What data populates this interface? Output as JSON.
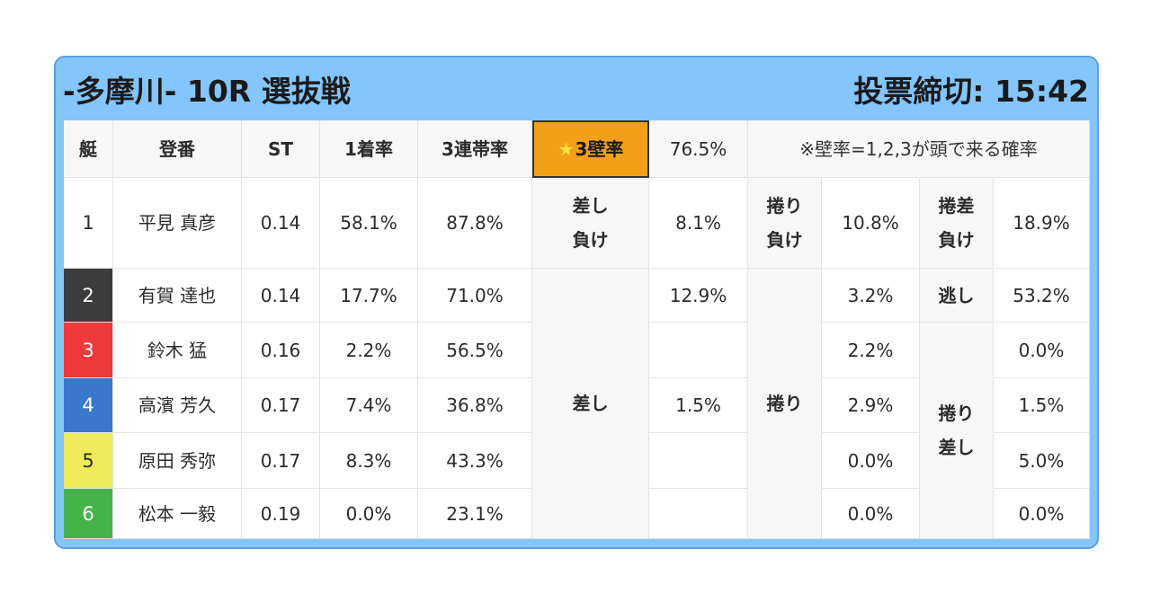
{
  "header": {
    "title": "-多摩川- 10R 選抜戦",
    "deadline": "投票締切: 15:42"
  },
  "columns": {
    "lane": "艇",
    "name": "登番",
    "st": "ST",
    "first_rate": "1着率",
    "trio_rate": "3連帯率",
    "wall_rate": "3壁率",
    "wall_rate_star": "★",
    "wall_rate_value": "76.5%",
    "note": "※壁率=1,2,3が頭で来る確率"
  },
  "lane_colors": {
    "1": "#ffffff",
    "2": "#3c3c3c",
    "3": "#ee3a3a",
    "4": "#3a78cc",
    "5": "#eeea5a",
    "6": "#46b34a"
  },
  "rows": [
    {
      "lane": "1",
      "name": "平見 真彦",
      "st": "0.14",
      "first": "58.1%",
      "trio": "87.8%",
      "c6": "8.1%",
      "c8": "10.8%",
      "c10": "18.9%"
    },
    {
      "lane": "2",
      "name": "有賀 達也",
      "st": "0.14",
      "first": "17.7%",
      "trio": "71.0%",
      "c6": "12.9%",
      "c8": "3.2%",
      "c10": "53.2%"
    },
    {
      "lane": "3",
      "name": "鈴木 猛",
      "st": "0.16",
      "first": "2.2%",
      "trio": "56.5%",
      "c6": "",
      "c8": "2.2%",
      "c10": "0.0%"
    },
    {
      "lane": "4",
      "name": "高濱 芳久",
      "st": "0.17",
      "first": "7.4%",
      "trio": "36.8%",
      "c6": "1.5%",
      "c8": "2.9%",
      "c10": "1.5%"
    },
    {
      "lane": "5",
      "name": "原田 秀弥",
      "st": "0.17",
      "first": "8.3%",
      "trio": "43.3%",
      "c6": "",
      "c8": "0.0%",
      "c10": "5.0%"
    },
    {
      "lane": "6",
      "name": "松本 一毅",
      "st": "0.19",
      "first": "0.0%",
      "trio": "23.1%",
      "c6": "",
      "c8": "0.0%",
      "c10": "0.0%"
    }
  ],
  "labels": {
    "sashi_make": [
      "差し",
      "負け"
    ],
    "makuri_make": [
      "捲り",
      "負け"
    ],
    "makurizashi_make": [
      "捲差",
      "負け"
    ],
    "sashi": "差し",
    "makuri": "捲り",
    "nige": "逃し",
    "makuri_sashi": [
      "捲り",
      "差し"
    ]
  }
}
